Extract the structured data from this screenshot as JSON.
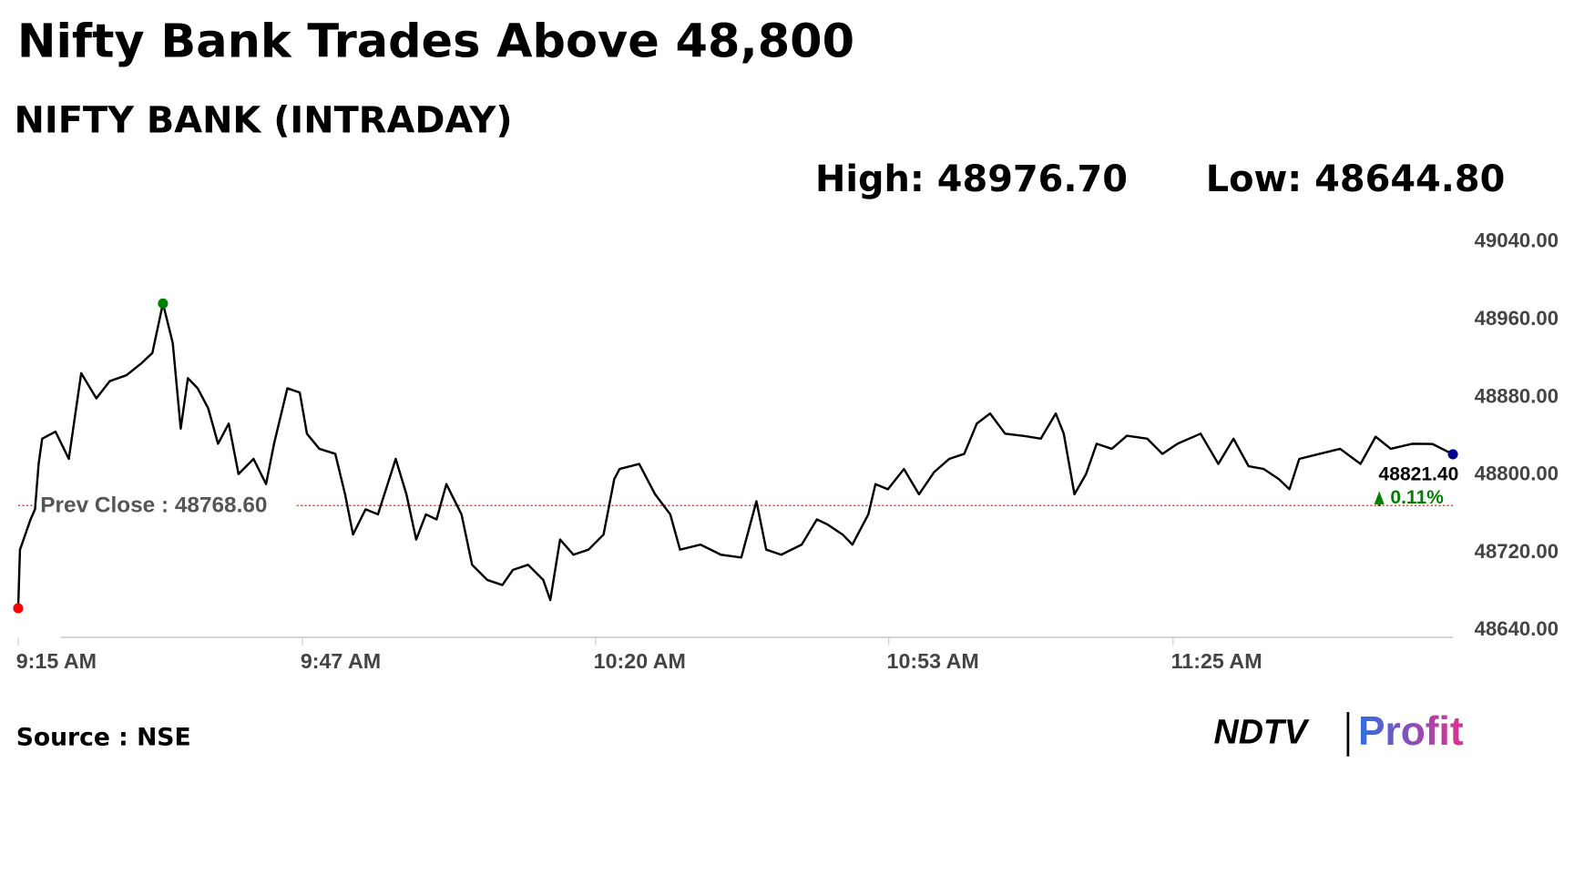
{
  "chart_data": {
    "type": "line",
    "title": "Nifty Bank Trades Above 48,800",
    "subtitle": "NIFTY BANK (INTRADAY)",
    "high_label": "High: 48976.70",
    "low_label": "Low: 48644.80",
    "prev_close": {
      "value": 48768.6,
      "label": "Prev Close : 48768.60"
    },
    "last_label": "48821.40",
    "change_label": "0.11%",
    "source": "Source : NSE",
    "logo": {
      "brand": "NDTV",
      "product": "Profit"
    },
    "xlim": [
      555,
      716.5
    ],
    "xticks": [
      {
        "value": 555,
        "label": "9:15 AM"
      },
      {
        "value": 587,
        "label": "9:47 AM"
      },
      {
        "value": 620,
        "label": "10:20 AM"
      },
      {
        "value": 653,
        "label": "10:53 AM"
      },
      {
        "value": 685,
        "label": "11:25 AM"
      }
    ],
    "ylim": [
      48640,
      49040
    ],
    "yticks": [
      {
        "value": 48640,
        "label": "48640.00"
      },
      {
        "value": 48720,
        "label": "48720.00"
      },
      {
        "value": 48800,
        "label": "48800.00"
      },
      {
        "value": 48880,
        "label": "48880.00"
      },
      {
        "value": 48960,
        "label": "48960.00"
      },
      {
        "value": 49040,
        "label": "49040.00"
      }
    ],
    "x": [
      555,
      555.2,
      556.4,
      556.9,
      557.3,
      557.7,
      559.2,
      560.7,
      562.1,
      563.8,
      565.3,
      567.2,
      568.9,
      570.1,
      571.3,
      572.4,
      573.3,
      574.1,
      575.2,
      576.4,
      577.5,
      578.7,
      579.8,
      581.5,
      582.9,
      583.8,
      585.3,
      586.7,
      587.5,
      588.9,
      590.7,
      591.8,
      592.7,
      594.1,
      595.5,
      597.5,
      598.7,
      599.8,
      600.9,
      602.1,
      603.2,
      604.9,
      606.1,
      607.8,
      609.5,
      610.7,
      612.4,
      614.1,
      614.9,
      616,
      617.5,
      619.2,
      620.9,
      622.1,
      622.7,
      624.9,
      626.7,
      628.4,
      629.5,
      631.8,
      634.1,
      636.4,
      638.1,
      639.2,
      640.9,
      643.2,
      644.9,
      646.1,
      647.8,
      648.9,
      650.7,
      651.5,
      652.9,
      654.7,
      656.4,
      658.1,
      659.8,
      661.5,
      662.9,
      664.4,
      666.1,
      668.4,
      670.1,
      671.8,
      672.7,
      673.9,
      675.2,
      676.4,
      678.1,
      679.8,
      682.1,
      683.8,
      685.5,
      688.1,
      690.1,
      691.8,
      693.5,
      695.2,
      696.9,
      698.1,
      699.2,
      701.5,
      703.8,
      706.1,
      707.8,
      709.5,
      711.9,
      714.2,
      716.5
    ],
    "series": [
      {
        "name": "NIFTY BANK",
        "color": "#000000",
        "values": [
          48662.8,
          48723.1,
          48754.3,
          48764.7,
          48811.4,
          48837.4,
          48844.7,
          48816.6,
          48904.9,
          48879,
          48896.6,
          48902.9,
          48915.3,
          48925.7,
          48976.7,
          48936.1,
          48847.8,
          48899.7,
          48889.3,
          48868.6,
          48832.2,
          48853,
          48801,
          48816.6,
          48790.6,
          48832.2,
          48889.3,
          48885,
          48842.6,
          48827,
          48821.8,
          48780.2,
          48738.7,
          48764.7,
          48759.5,
          48816.6,
          48780.2,
          48733.5,
          48759.5,
          48754.3,
          48790.6,
          48759.5,
          48707.5,
          48691.9,
          48686.7,
          48702.3,
          48707.5,
          48691.9,
          48671.2,
          48733.5,
          48717.9,
          48723.1,
          48738.7,
          48795.8,
          48806.2,
          48811.4,
          48780.2,
          48759.5,
          48723.1,
          48728.3,
          48717.9,
          48715,
          48773,
          48723.1,
          48717.9,
          48728.3,
          48754.3,
          48749.1,
          48738.7,
          48728.3,
          48759.5,
          48790.6,
          48785.4,
          48806.2,
          48780.2,
          48803,
          48816.6,
          48821.8,
          48853,
          48863.4,
          48842.6,
          48840,
          48837.4,
          48863.4,
          48842.6,
          48780.2,
          48801,
          48832.2,
          48827,
          48840.5,
          48837.4,
          48821.8,
          48832.2,
          48842.6,
          48811.4,
          48837.4,
          48809,
          48806.2,
          48795.8,
          48785.4,
          48816.6,
          48821.8,
          48827,
          48811.4,
          48839.5,
          48827,
          48832.2,
          48832,
          48821.4
        ]
      }
    ],
    "markers": [
      {
        "index": 0,
        "color": "#ff0000"
      },
      {
        "index": 14,
        "color": "#008000"
      },
      {
        "index": 108,
        "color": "#00008b"
      }
    ]
  }
}
